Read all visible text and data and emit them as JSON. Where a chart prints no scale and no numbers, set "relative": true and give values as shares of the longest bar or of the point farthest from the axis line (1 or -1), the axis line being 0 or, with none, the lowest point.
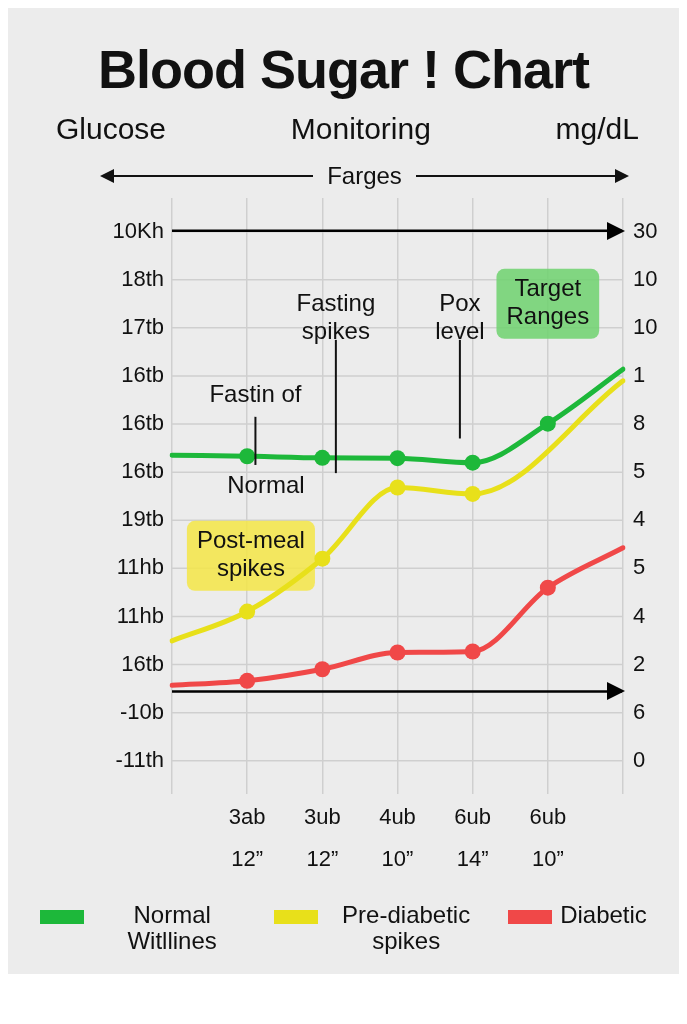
{
  "chart_data": {
    "type": "line",
    "title": "Blood Sugar ! Chart",
    "subtitle": "Glucose Monitoring mg/dL",
    "categories": [
      null,
      "3ab\n12”",
      "3ub\n12”",
      "4ub\n10”",
      "6ub\n14”",
      "6ub\n10”",
      null
    ],
    "relative": true,
    "ref_lines": [
      {
        "axis": "y",
        "value": 0
      },
      {
        "axis": "y",
        "value": 1.43
      }
    ],
    "grid": true,
    "legend": "bottom",
    "marker": "circle",
    "line_style": "solid",
    "series": [
      {
        "name": "Normal Witllines",
        "color": "#1db83a",
        "values": [
          0.733,
          0.73,
          0.725,
          0.724,
          0.71,
          0.831,
          1
        ]
      },
      {
        "name": "Pre-diabetic spikes",
        "color": "#e8e01a",
        "values": [
          0.157,
          0.248,
          0.412,
          0.633,
          0.613,
          null,
          0.964
        ]
      },
      {
        "name": "Diabetic",
        "color": "#f04848",
        "values": [
          0.019,
          0.033,
          0.069,
          0.121,
          0.124,
          0.322,
          0.446
        ]
      }
    ],
    "annotations": [
      "Farges",
      "Fasting spikes",
      "Pox level",
      "Fastin of",
      "Normal",
      "Post-meal spikes",
      "Target Ranges",
      "10Kh",
      "18th",
      "17tb",
      "16tb",
      "16tb",
      "16tb",
      "19tb",
      "11hb",
      "11hb",
      "16tb",
      "-10b",
      "-11th",
      "30",
      "10",
      "10",
      "1",
      "8",
      "5",
      "4",
      "5",
      "4",
      "2",
      "6",
      "0"
    ]
  }
}
